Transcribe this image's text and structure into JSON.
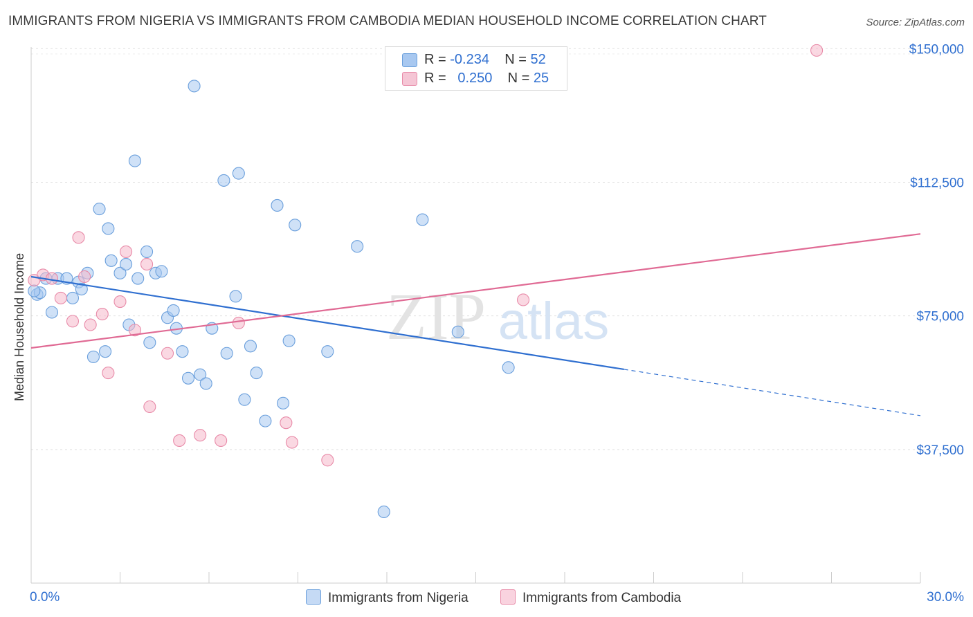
{
  "header": {
    "title": "IMMIGRANTS FROM NIGERIA VS IMMIGRANTS FROM CAMBODIA MEDIAN HOUSEHOLD INCOME CORRELATION CHART",
    "source": "Source: ZipAtlas.com"
  },
  "legend": {
    "rows": [
      {
        "r_label": "R =",
        "r_value": "-0.234",
        "n_label": "N =",
        "n_value": "52"
      },
      {
        "r_label": "R =",
        "r_value": "0.250",
        "n_label": "N =",
        "n_value": "25"
      }
    ],
    "bottom": [
      "Immigrants from Nigeria",
      "Immigrants from Cambodia"
    ]
  },
  "watermark": {
    "zip": "ZIP",
    "atlas": "atlas"
  },
  "colors": {
    "nigeria_fill": "#a8c8f0",
    "nigeria_stroke": "#6a9fdc",
    "nigeria_line": "#2f6fd0",
    "cambodia_fill": "#f5b8cb",
    "cambodia_stroke": "#e88aa8",
    "cambodia_line": "#e06a94",
    "tick_label": "#2f6fd0"
  },
  "chart_data": {
    "type": "scatter",
    "title": "IMMIGRANTS FROM NIGERIA VS IMMIGRANTS FROM CAMBODIA MEDIAN HOUSEHOLD INCOME CORRELATION CHART",
    "xlabel": "",
    "ylabel": "Median Household Income",
    "xlim": [
      0,
      30
    ],
    "ylim": [
      0,
      152000
    ],
    "x_tick_labels": [
      "0.0%",
      "30.0%"
    ],
    "y_ticks": [
      37500,
      75000,
      112500,
      150000
    ],
    "y_tick_labels": [
      "$37,500",
      "$75,000",
      "$112,500",
      "$150,000"
    ],
    "grid": true,
    "legend_position": "top-center",
    "series": [
      {
        "name": "Immigrants from Nigeria",
        "r": -0.234,
        "n": 52,
        "trend": {
          "x0": 0.0,
          "y0": 86000,
          "x1": 20.0,
          "y1": 60000,
          "x_dash_end": 30.0,
          "y_dash_end": 47000
        },
        "points": [
          {
            "x": 0.2,
            "y": 81000
          },
          {
            "x": 0.3,
            "y": 81500
          },
          {
            "x": 0.5,
            "y": 85500
          },
          {
            "x": 0.7,
            "y": 76000
          },
          {
            "x": 0.9,
            "y": 85500
          },
          {
            "x": 1.2,
            "y": 85500
          },
          {
            "x": 1.4,
            "y": 80000
          },
          {
            "x": 1.6,
            "y": 84500
          },
          {
            "x": 1.7,
            "y": 82500
          },
          {
            "x": 1.9,
            "y": 87000
          },
          {
            "x": 2.1,
            "y": 63500
          },
          {
            "x": 2.3,
            "y": 105000
          },
          {
            "x": 2.5,
            "y": 65000
          },
          {
            "x": 2.6,
            "y": 99500
          },
          {
            "x": 2.7,
            "y": 90500
          },
          {
            "x": 3.0,
            "y": 87000
          },
          {
            "x": 3.2,
            "y": 89500
          },
          {
            "x": 3.3,
            "y": 72500
          },
          {
            "x": 3.5,
            "y": 118500
          },
          {
            "x": 3.6,
            "y": 85500
          },
          {
            "x": 3.9,
            "y": 93000
          },
          {
            "x": 4.0,
            "y": 67500
          },
          {
            "x": 4.2,
            "y": 87000
          },
          {
            "x": 4.4,
            "y": 87500
          },
          {
            "x": 4.6,
            "y": 74500
          },
          {
            "x": 4.8,
            "y": 76500
          },
          {
            "x": 4.9,
            "y": 71500
          },
          {
            "x": 5.1,
            "y": 65000
          },
          {
            "x": 5.3,
            "y": 57500
          },
          {
            "x": 5.5,
            "y": 139500
          },
          {
            "x": 5.7,
            "y": 58500
          },
          {
            "x": 5.9,
            "y": 56000
          },
          {
            "x": 6.1,
            "y": 71500
          },
          {
            "x": 6.5,
            "y": 113000
          },
          {
            "x": 6.6,
            "y": 64500
          },
          {
            "x": 6.9,
            "y": 80500
          },
          {
            "x": 7.0,
            "y": 115000
          },
          {
            "x": 7.2,
            "y": 51500
          },
          {
            "x": 7.4,
            "y": 66500
          },
          {
            "x": 7.6,
            "y": 59000
          },
          {
            "x": 7.9,
            "y": 45500
          },
          {
            "x": 8.3,
            "y": 106000
          },
          {
            "x": 8.5,
            "y": 50500
          },
          {
            "x": 8.7,
            "y": 68000
          },
          {
            "x": 8.9,
            "y": 100500
          },
          {
            "x": 10.0,
            "y": 65000
          },
          {
            "x": 11.0,
            "y": 94500
          },
          {
            "x": 11.9,
            "y": 20000
          },
          {
            "x": 13.2,
            "y": 102000
          },
          {
            "x": 14.4,
            "y": 70500
          },
          {
            "x": 16.1,
            "y": 60500
          },
          {
            "x": 0.1,
            "y": 82000
          }
        ]
      },
      {
        "name": "Immigrants from Cambodia",
        "r": 0.25,
        "n": 25,
        "trend": {
          "x0": 0.0,
          "y0": 66000,
          "x1": 30.0,
          "y1": 98000
        },
        "points": [
          {
            "x": 0.1,
            "y": 85000
          },
          {
            "x": 0.4,
            "y": 86500
          },
          {
            "x": 0.7,
            "y": 85500
          },
          {
            "x": 1.0,
            "y": 80000
          },
          {
            "x": 1.4,
            "y": 73500
          },
          {
            "x": 1.6,
            "y": 97000
          },
          {
            "x": 1.8,
            "y": 86000
          },
          {
            "x": 2.0,
            "y": 72500
          },
          {
            "x": 2.4,
            "y": 75500
          },
          {
            "x": 2.6,
            "y": 59000
          },
          {
            "x": 3.0,
            "y": 79000
          },
          {
            "x": 3.2,
            "y": 93000
          },
          {
            "x": 3.5,
            "y": 71000
          },
          {
            "x": 3.9,
            "y": 89500
          },
          {
            "x": 4.0,
            "y": 49500
          },
          {
            "x": 4.6,
            "y": 64500
          },
          {
            "x": 5.0,
            "y": 40000
          },
          {
            "x": 5.7,
            "y": 41500
          },
          {
            "x": 6.4,
            "y": 40000
          },
          {
            "x": 7.0,
            "y": 73000
          },
          {
            "x": 8.6,
            "y": 45000
          },
          {
            "x": 8.8,
            "y": 39500
          },
          {
            "x": 10.0,
            "y": 34500
          },
          {
            "x": 16.6,
            "y": 79500
          },
          {
            "x": 26.5,
            "y": 149500
          }
        ]
      }
    ]
  }
}
